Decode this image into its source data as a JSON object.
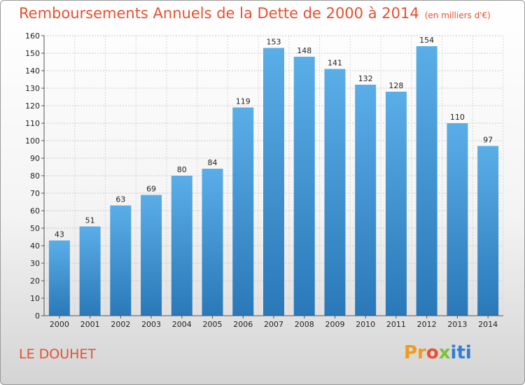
{
  "header": {
    "title": "Remboursements Annuels de la Dette de 2000 à 2014",
    "unit": "(en milliers d'€)"
  },
  "footer": {
    "commune": "LE DOUHET",
    "logo_parts": [
      "Pr",
      "o",
      "x",
      "iti"
    ]
  },
  "colors": {
    "title": "#e8502f",
    "bar_top": "#5aaee8",
    "bar_bottom": "#2a78b8"
  },
  "chart_data": {
    "type": "bar",
    "title": "Remboursements Annuels de la Dette de 2000 à 2014",
    "xlabel": "",
    "ylabel": "(en milliers d'€)",
    "categories": [
      "2000",
      "2001",
      "2002",
      "2003",
      "2004",
      "2005",
      "2006",
      "2007",
      "2008",
      "2009",
      "2010",
      "2011",
      "2012",
      "2013",
      "2014"
    ],
    "values": [
      43,
      51,
      63,
      69,
      80,
      84,
      119,
      153,
      148,
      141,
      132,
      128,
      154,
      110,
      97
    ],
    "ylim": [
      0,
      160
    ],
    "yticks": [
      0,
      10,
      20,
      30,
      40,
      50,
      60,
      70,
      80,
      90,
      100,
      110,
      120,
      130,
      140,
      150,
      160
    ],
    "grid": true
  }
}
